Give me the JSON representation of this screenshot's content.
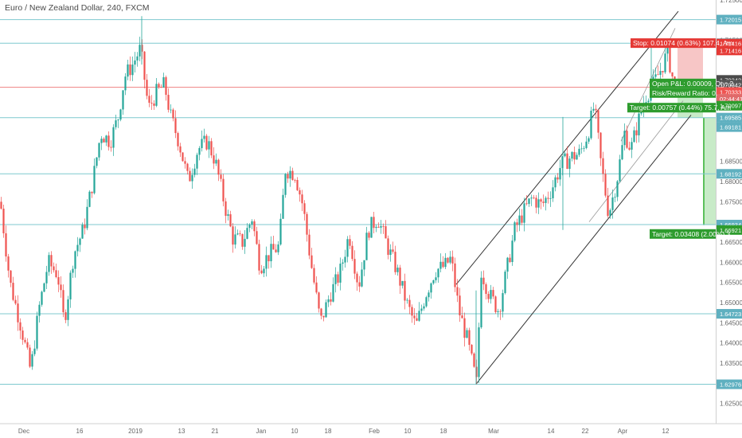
{
  "header": {
    "title": "Euro / New Zealand Dollar, 240, FXCM"
  },
  "colors": {
    "up": "#26a69a",
    "down": "#ef5350",
    "level_line": "#7fc9cf",
    "level_tag": "#5fb0c0",
    "channel": "#333333",
    "stop_zone": "#f7c6c6",
    "target_zone": "#c8ebc8",
    "stop_label": "#e53935",
    "target_label": "#2e9c2e",
    "current_price_tag": "#4a4a4a",
    "entry_tag": "#ef5350"
  },
  "chart_data": {
    "type": "candlestick",
    "title": "Euro / New Zealand Dollar, 240, FXCM",
    "ylim": [
      1.62,
      1.725
    ],
    "x_ticks": [
      "Dec",
      "16",
      "2019",
      "13",
      "21",
      "Jan",
      "10",
      "18",
      "Feb",
      "10",
      "18",
      "Mar",
      "14",
      "22",
      "Apr",
      "12"
    ],
    "y_ticks": [
      "1.72500",
      "1.71500",
      "1.70500",
      "1.69500",
      "1.68500",
      "1.68000",
      "1.67500",
      "1.66500",
      "1.66000",
      "1.65500",
      "1.65000",
      "1.64500",
      "1.64000",
      "1.63500",
      "1.62500"
    ],
    "horizontal_levels": [
      "1.72015",
      "1.71429",
      "1.69585",
      "1.68192",
      "1.66934",
      "1.64723",
      "1.62976"
    ],
    "price_tags": [
      "1.71416",
      "1.71416",
      "1.70342",
      "1.70342",
      "1.70333",
      "02:44:41",
      "1.70097",
      "1.69181",
      "1.66921"
    ],
    "position": {
      "stop_text": "Stop: 0.01074 (0.63%) 107.4, Am",
      "open_pnl_text": "Open P&L: 0.00009, Qty: 2",
      "risk_reward_text": "Risk/Reward Ratio: 0.",
      "target1_text": "Target: 0.00757 (0.44%) 75.7, Am",
      "target2_text": "Target: 0.03408 (2.00%) 3"
    },
    "close_path": [
      [
        0,
        1.675
      ],
      [
        12,
        1.655
      ],
      [
        26,
        1.644
      ],
      [
        38,
        1.633
      ],
      [
        48,
        1.648
      ],
      [
        60,
        1.66
      ],
      [
        72,
        1.657
      ],
      [
        80,
        1.645
      ],
      [
        92,
        1.662
      ],
      [
        104,
        1.668
      ],
      [
        116,
        1.68
      ],
      [
        126,
        1.692
      ],
      [
        138,
        1.69
      ],
      [
        148,
        1.696
      ],
      [
        156,
        1.706
      ],
      [
        166,
        1.709
      ],
      [
        176,
        1.713
      ],
      [
        186,
        1.698
      ],
      [
        196,
        1.702
      ],
      [
        206,
        1.704
      ],
      [
        214,
        1.696
      ],
      [
        224,
        1.69
      ],
      [
        236,
        1.68
      ],
      [
        248,
        1.688
      ],
      [
        260,
        1.69
      ],
      [
        270,
        1.685
      ],
      [
        282,
        1.674
      ],
      [
        292,
        1.666
      ],
      [
        304,
        1.665
      ],
      [
        316,
        1.671
      ],
      [
        326,
        1.659
      ],
      [
        338,
        1.662
      ],
      [
        350,
        1.664
      ],
      [
        358,
        1.683
      ],
      [
        370,
        1.682
      ],
      [
        380,
        1.674
      ],
      [
        390,
        1.66
      ],
      [
        402,
        1.645
      ],
      [
        414,
        1.652
      ],
      [
        426,
        1.657
      ],
      [
        438,
        1.667
      ],
      [
        450,
        1.654
      ],
      [
        462,
        1.668
      ],
      [
        474,
        1.671
      ],
      [
        486,
        1.664
      ],
      [
        498,
        1.658
      ],
      [
        510,
        1.65
      ],
      [
        522,
        1.644
      ],
      [
        534,
        1.652
      ],
      [
        546,
        1.658
      ],
      [
        558,
        1.659
      ],
      [
        566,
        1.661
      ],
      [
        576,
        1.648
      ],
      [
        586,
        1.641
      ],
      [
        598,
        1.63
      ],
      [
        604,
        1.658
      ],
      [
        614,
        1.652
      ],
      [
        626,
        1.648
      ],
      [
        636,
        1.658
      ],
      [
        646,
        1.668
      ],
      [
        656,
        1.672
      ],
      [
        668,
        1.676
      ],
      [
        680,
        1.674
      ],
      [
        692,
        1.678
      ],
      [
        704,
        1.684
      ],
      [
        716,
        1.686
      ],
      [
        728,
        1.687
      ],
      [
        738,
        1.692
      ],
      [
        746,
        1.699
      ],
      [
        754,
        1.685
      ],
      [
        764,
        1.672
      ],
      [
        774,
        1.68
      ],
      [
        784,
        1.692
      ],
      [
        792,
        1.688
      ],
      [
        800,
        1.694
      ],
      [
        810,
        1.701
      ],
      [
        820,
        1.704
      ],
      [
        830,
        1.708
      ],
      [
        838,
        1.712
      ],
      [
        846,
        1.704
      ],
      [
        850,
        1.7034
      ]
    ]
  }
}
